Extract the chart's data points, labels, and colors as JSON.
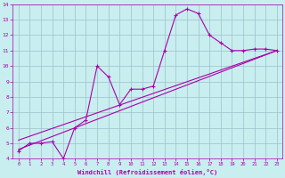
{
  "xlabel": "Windchill (Refroidissement éolien,°C)",
  "bg_color": "#c8eef0",
  "grid_color": "#b0d0d8",
  "line_color": "#aa00aa",
  "xlim": [
    -0.5,
    23.5
  ],
  "ylim": [
    4,
    14
  ],
  "xticks": [
    0,
    1,
    2,
    3,
    4,
    5,
    6,
    7,
    8,
    9,
    10,
    11,
    12,
    13,
    14,
    15,
    16,
    17,
    18,
    19,
    20,
    21,
    22,
    23
  ],
  "yticks": [
    4,
    5,
    6,
    7,
    8,
    9,
    10,
    11,
    12,
    13,
    14
  ],
  "main_x": [
    0,
    1,
    2,
    3,
    4,
    5,
    6,
    7,
    8,
    9,
    10,
    11,
    12,
    13,
    14,
    15,
    16,
    17,
    18,
    19,
    20,
    21,
    22,
    23
  ],
  "main_y": [
    4.5,
    5.0,
    5.0,
    5.1,
    4.0,
    6.0,
    6.5,
    10.0,
    9.3,
    7.5,
    8.5,
    8.5,
    8.7,
    11.0,
    13.3,
    13.7,
    13.4,
    12.0,
    11.5,
    11.0,
    11.0,
    11.1,
    11.1,
    11.0
  ],
  "line2_x": [
    0,
    23
  ],
  "line2_y": [
    4.6,
    11.0
  ],
  "line3_x": [
    0,
    23
  ],
  "line3_y": [
    5.2,
    11.0
  ]
}
